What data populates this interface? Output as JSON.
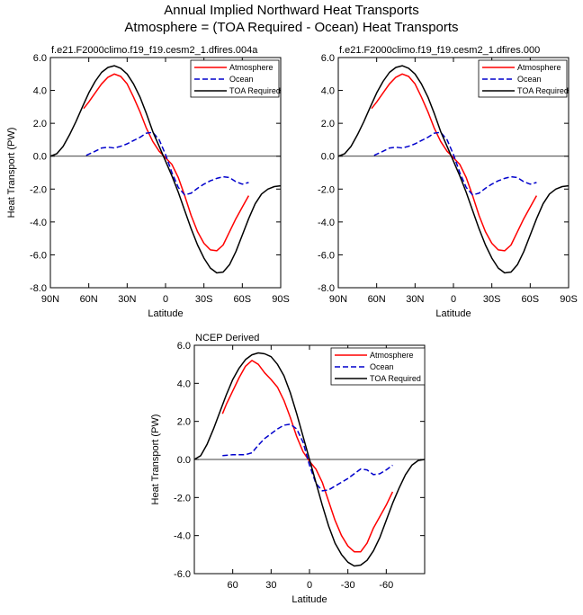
{
  "figure": {
    "title_line1": "Annual Implied Northward Heat Transports",
    "title_line2": "Atmosphere = (TOA Required - Ocean) Heat Transports"
  },
  "chart_data": [
    {
      "type": "line",
      "title": "f.e21.F2000climo.f19_f19.cesm2_1.dfires.004a",
      "xlabel": "Latitude",
      "ylabel": "Heat Transport (PW)",
      "xlim": [
        90,
        -90
      ],
      "ylim": [
        -8,
        6
      ],
      "xticks": [
        90,
        60,
        30,
        0,
        -30,
        -60,
        -90
      ],
      "xtick_labels": [
        "90N",
        "60N",
        "30N",
        "0",
        "30S",
        "60S",
        "90S"
      ],
      "yticks": [
        -8,
        -6,
        -4,
        -2,
        0,
        2,
        4,
        6
      ],
      "ytick_labels": [
        "-8.0",
        "-6.0",
        "-4.0",
        "-2.0",
        "0.0",
        "2.0",
        "4.0",
        "6.0"
      ],
      "zero_line": true,
      "grid": false,
      "legend_position": "top-right",
      "series": [
        {
          "name": "Atmosphere",
          "color": "#ff0000",
          "dash": "solid",
          "x": [
            64,
            60,
            55,
            50,
            45,
            40,
            35,
            30,
            25,
            20,
            15,
            10,
            5,
            0,
            -5,
            -10,
            -15,
            -20,
            -25,
            -30,
            -35,
            -40,
            -45,
            -50,
            -55,
            -60,
            -65
          ],
          "y": [
            2.9,
            3.3,
            3.85,
            4.4,
            4.8,
            5.0,
            4.85,
            4.4,
            3.6,
            2.7,
            1.7,
            0.9,
            0.3,
            -0.1,
            -0.5,
            -1.3,
            -2.4,
            -3.6,
            -4.6,
            -5.3,
            -5.7,
            -5.75,
            -5.4,
            -4.6,
            -3.8,
            -3.1,
            -2.4
          ]
        },
        {
          "name": "Ocean",
          "color": "#0000cc",
          "dash": "dashed",
          "x": [
            62,
            55,
            50,
            45,
            40,
            35,
            30,
            25,
            20,
            15,
            10,
            5,
            0,
            -5,
            -10,
            -15,
            -20,
            -25,
            -30,
            -35,
            -40,
            -45,
            -50,
            -55,
            -60,
            -65
          ],
          "y": [
            0.05,
            0.3,
            0.5,
            0.55,
            0.5,
            0.6,
            0.75,
            0.95,
            1.15,
            1.4,
            1.45,
            1.0,
            0.1,
            -1.0,
            -1.9,
            -2.35,
            -2.25,
            -1.95,
            -1.7,
            -1.5,
            -1.35,
            -1.25,
            -1.3,
            -1.55,
            -1.7,
            -1.6
          ]
        },
        {
          "name": "TOA Required",
          "color": "#000000",
          "dash": "solid",
          "x": [
            90,
            85,
            80,
            75,
            70,
            65,
            60,
            55,
            50,
            45,
            40,
            35,
            30,
            25,
            20,
            15,
            10,
            5,
            0,
            -5,
            -10,
            -15,
            -20,
            -25,
            -30,
            -35,
            -40,
            -45,
            -50,
            -55,
            -60,
            -65,
            -70,
            -75,
            -80,
            -85,
            -90
          ],
          "y": [
            0.0,
            0.15,
            0.6,
            1.3,
            2.1,
            3.0,
            3.85,
            4.55,
            5.1,
            5.4,
            5.5,
            5.35,
            5.0,
            4.4,
            3.6,
            2.6,
            1.5,
            0.6,
            -0.3,
            -1.2,
            -2.2,
            -3.3,
            -4.4,
            -5.4,
            -6.2,
            -6.8,
            -7.1,
            -7.05,
            -6.6,
            -5.8,
            -4.8,
            -3.8,
            -2.9,
            -2.3,
            -2.0,
            -1.85,
            -1.8
          ]
        }
      ]
    },
    {
      "type": "line",
      "title": "f.e21.F2000climo.f19_f19.cesm2_1.dfires.000",
      "xlabel": "Latitude",
      "ylabel": "",
      "xlim": [
        90,
        -90
      ],
      "ylim": [
        -8,
        6
      ],
      "xticks": [
        90,
        60,
        30,
        0,
        -30,
        -60,
        -90
      ],
      "xtick_labels": [
        "90N",
        "60N",
        "30N",
        "0",
        "30S",
        "60S",
        "90S"
      ],
      "yticks": [
        -8,
        -6,
        -4,
        -2,
        0,
        2,
        4,
        6
      ],
      "ytick_labels": [
        "-8.0",
        "-6.0",
        "-4.0",
        "-2.0",
        "0.0",
        "2.0",
        "4.0",
        "6.0"
      ],
      "zero_line": true,
      "grid": false,
      "legend_position": "top-right",
      "series": [
        {
          "name": "Atmosphere",
          "color": "#ff0000",
          "dash": "solid",
          "x": [
            64,
            60,
            55,
            50,
            45,
            40,
            35,
            30,
            25,
            20,
            15,
            10,
            5,
            0,
            -5,
            -10,
            -15,
            -20,
            -25,
            -30,
            -35,
            -40,
            -45,
            -50,
            -55,
            -60,
            -65
          ],
          "y": [
            2.9,
            3.3,
            3.85,
            4.4,
            4.8,
            5.0,
            4.85,
            4.4,
            3.6,
            2.7,
            1.7,
            0.9,
            0.3,
            -0.1,
            -0.5,
            -1.3,
            -2.4,
            -3.6,
            -4.6,
            -5.3,
            -5.7,
            -5.75,
            -5.4,
            -4.6,
            -3.8,
            -3.1,
            -2.4
          ]
        },
        {
          "name": "Ocean",
          "color": "#0000cc",
          "dash": "dashed",
          "x": [
            62,
            55,
            50,
            45,
            40,
            35,
            30,
            25,
            20,
            15,
            10,
            5,
            0,
            -5,
            -10,
            -15,
            -20,
            -25,
            -30,
            -35,
            -40,
            -45,
            -50,
            -55,
            -60,
            -65
          ],
          "y": [
            0.05,
            0.3,
            0.5,
            0.55,
            0.5,
            0.6,
            0.75,
            0.95,
            1.15,
            1.4,
            1.45,
            1.0,
            0.1,
            -1.0,
            -1.9,
            -2.35,
            -2.25,
            -1.95,
            -1.7,
            -1.5,
            -1.35,
            -1.25,
            -1.3,
            -1.55,
            -1.7,
            -1.6
          ]
        },
        {
          "name": "TOA Required",
          "color": "#000000",
          "dash": "solid",
          "x": [
            90,
            85,
            80,
            75,
            70,
            65,
            60,
            55,
            50,
            45,
            40,
            35,
            30,
            25,
            20,
            15,
            10,
            5,
            0,
            -5,
            -10,
            -15,
            -20,
            -25,
            -30,
            -35,
            -40,
            -45,
            -50,
            -55,
            -60,
            -65,
            -70,
            -75,
            -80,
            -85,
            -90
          ],
          "y": [
            0.0,
            0.15,
            0.6,
            1.3,
            2.1,
            3.0,
            3.85,
            4.55,
            5.1,
            5.4,
            5.5,
            5.35,
            5.0,
            4.4,
            3.6,
            2.6,
            1.5,
            0.6,
            -0.3,
            -1.2,
            -2.2,
            -3.3,
            -4.4,
            -5.4,
            -6.2,
            -6.8,
            -7.1,
            -7.05,
            -6.6,
            -5.8,
            -4.8,
            -3.8,
            -2.9,
            -2.3,
            -2.0,
            -1.85,
            -1.8
          ]
        }
      ]
    },
    {
      "type": "line",
      "title": "NCEP Derived",
      "xlabel": "Latitude",
      "ylabel": "Heat Transport (PW)",
      "xlim": [
        90,
        -90
      ],
      "ylim": [
        -6,
        6
      ],
      "xticks": [
        60,
        30,
        0,
        -30,
        -60
      ],
      "xtick_labels": [
        "60",
        "30",
        "0",
        "-30",
        "-60"
      ],
      "yticks": [
        -6,
        -4,
        -2,
        0,
        2,
        4,
        6
      ],
      "ytick_labels": [
        "-6.0",
        "-4.0",
        "-2.0",
        "0.0",
        "2.0",
        "4.0",
        "6.0"
      ],
      "zero_line": true,
      "grid": false,
      "legend_position": "top-right",
      "series": [
        {
          "name": "Atmosphere",
          "color": "#ff0000",
          "dash": "solid",
          "x": [
            68,
            65,
            60,
            55,
            50,
            45,
            40,
            35,
            30,
            25,
            20,
            15,
            10,
            5,
            0,
            -5,
            -10,
            -15,
            -20,
            -25,
            -30,
            -35,
            -40,
            -45,
            -50,
            -55,
            -60,
            -65
          ],
          "y": [
            2.4,
            2.9,
            3.6,
            4.3,
            4.9,
            5.2,
            5.0,
            4.55,
            4.2,
            3.8,
            3.1,
            2.2,
            1.2,
            0.4,
            -0.1,
            -0.5,
            -1.2,
            -2.2,
            -3.2,
            -4.0,
            -4.55,
            -4.85,
            -4.85,
            -4.4,
            -3.6,
            -3.0,
            -2.4,
            -1.7
          ]
        },
        {
          "name": "Ocean",
          "color": "#0000cc",
          "dash": "dashed",
          "x": [
            68,
            60,
            55,
            50,
            45,
            40,
            35,
            30,
            25,
            20,
            15,
            10,
            5,
            0,
            -5,
            -10,
            -15,
            -20,
            -25,
            -30,
            -35,
            -40,
            -45,
            -50,
            -55,
            -60,
            -65
          ],
          "y": [
            0.2,
            0.25,
            0.25,
            0.25,
            0.35,
            0.75,
            1.1,
            1.35,
            1.6,
            1.8,
            1.85,
            1.6,
            0.9,
            -0.3,
            -1.25,
            -1.65,
            -1.6,
            -1.4,
            -1.2,
            -1.0,
            -0.75,
            -0.5,
            -0.55,
            -0.8,
            -0.75,
            -0.55,
            -0.3
          ]
        },
        {
          "name": "TOA Required",
          "color": "#000000",
          "dash": "solid",
          "x": [
            90,
            85,
            80,
            75,
            70,
            65,
            60,
            55,
            50,
            45,
            40,
            35,
            30,
            25,
            20,
            15,
            10,
            5,
            0,
            -5,
            -10,
            -15,
            -20,
            -25,
            -30,
            -35,
            -40,
            -45,
            -50,
            -55,
            -60,
            -65,
            -70,
            -75,
            -80,
            -85,
            -90
          ],
          "y": [
            0.0,
            0.2,
            0.8,
            1.6,
            2.5,
            3.4,
            4.2,
            4.8,
            5.25,
            5.5,
            5.6,
            5.55,
            5.4,
            5.0,
            4.4,
            3.5,
            2.4,
            1.2,
            0.0,
            -1.2,
            -2.4,
            -3.5,
            -4.4,
            -5.0,
            -5.4,
            -5.6,
            -5.55,
            -5.3,
            -4.8,
            -4.1,
            -3.2,
            -2.3,
            -1.5,
            -0.8,
            -0.3,
            -0.05,
            0.0
          ]
        }
      ]
    }
  ]
}
